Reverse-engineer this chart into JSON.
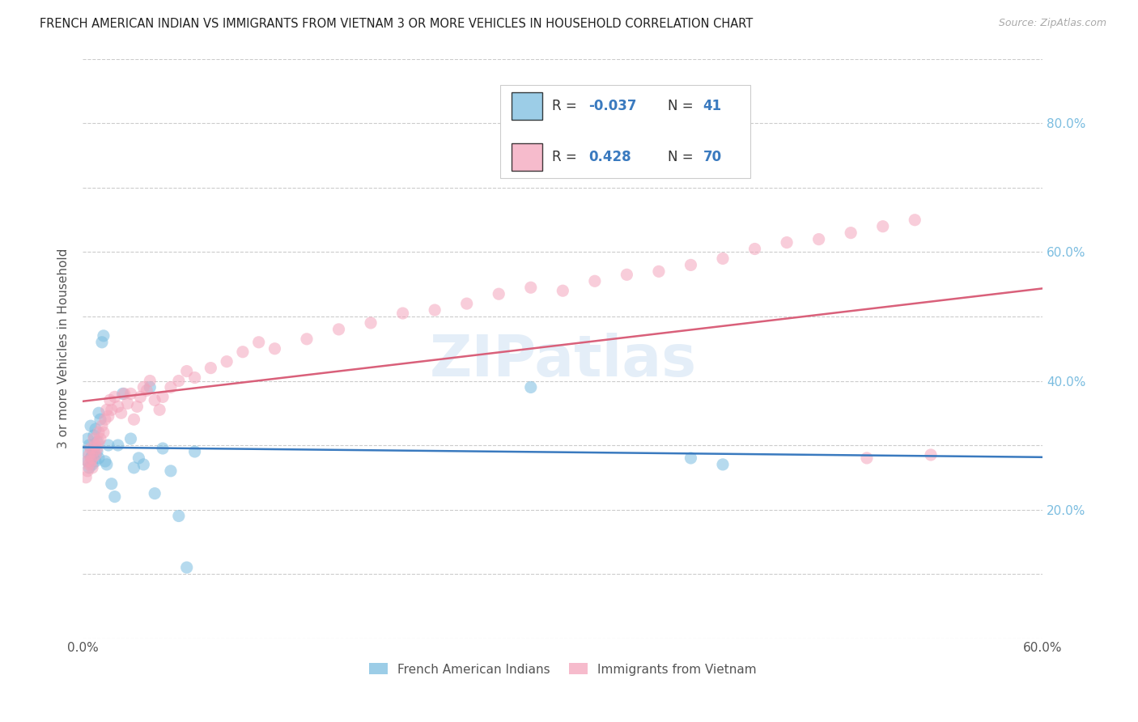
{
  "title": "FRENCH AMERICAN INDIAN VS IMMIGRANTS FROM VIETNAM 3 OR MORE VEHICLES IN HOUSEHOLD CORRELATION CHART",
  "source": "Source: ZipAtlas.com",
  "ylabel": "3 or more Vehicles in Household",
  "xlim": [
    0.0,
    0.6
  ],
  "ylim": [
    0.0,
    0.9
  ],
  "xtick_positions": [
    0.0,
    0.1,
    0.2,
    0.3,
    0.4,
    0.5,
    0.6
  ],
  "xticklabels": [
    "0.0%",
    "",
    "",
    "",
    "",
    "",
    "60.0%"
  ],
  "ytick_positions": [
    0.0,
    0.1,
    0.2,
    0.3,
    0.4,
    0.5,
    0.6,
    0.7,
    0.8,
    0.9
  ],
  "ytick_right": [
    0.2,
    0.4,
    0.6,
    0.8
  ],
  "yticklabels_right": [
    "20.0%",
    "40.0%",
    "60.0%",
    "80.0%"
  ],
  "legend_labels": [
    "French American Indians",
    "Immigrants from Vietnam"
  ],
  "R_blue": -0.037,
  "N_blue": 41,
  "R_pink": 0.428,
  "N_pink": 70,
  "blue_scatter_color": "#7bbde0",
  "pink_scatter_color": "#f4a5bc",
  "blue_line_color": "#3a7abf",
  "pink_line_color": "#d9607a",
  "watermark": "ZIPatlas",
  "blue_x": [
    0.002,
    0.003,
    0.003,
    0.004,
    0.004,
    0.005,
    0.005,
    0.006,
    0.006,
    0.007,
    0.007,
    0.008,
    0.008,
    0.009,
    0.009,
    0.01,
    0.01,
    0.011,
    0.012,
    0.013,
    0.014,
    0.015,
    0.016,
    0.018,
    0.02,
    0.022,
    0.025,
    0.03,
    0.032,
    0.035,
    0.038,
    0.042,
    0.045,
    0.05,
    0.055,
    0.06,
    0.065,
    0.07,
    0.28,
    0.38,
    0.4
  ],
  "blue_y": [
    0.29,
    0.275,
    0.31,
    0.265,
    0.3,
    0.28,
    0.33,
    0.285,
    0.27,
    0.315,
    0.295,
    0.275,
    0.325,
    0.305,
    0.29,
    0.35,
    0.28,
    0.34,
    0.46,
    0.47,
    0.275,
    0.27,
    0.3,
    0.24,
    0.22,
    0.3,
    0.38,
    0.31,
    0.265,
    0.28,
    0.27,
    0.39,
    0.225,
    0.295,
    0.26,
    0.19,
    0.11,
    0.29,
    0.39,
    0.28,
    0.27
  ],
  "pink_x": [
    0.002,
    0.003,
    0.003,
    0.004,
    0.004,
    0.005,
    0.005,
    0.006,
    0.006,
    0.007,
    0.007,
    0.008,
    0.008,
    0.009,
    0.01,
    0.01,
    0.011,
    0.012,
    0.013,
    0.014,
    0.015,
    0.016,
    0.017,
    0.018,
    0.02,
    0.022,
    0.024,
    0.026,
    0.028,
    0.03,
    0.032,
    0.034,
    0.036,
    0.038,
    0.04,
    0.042,
    0.045,
    0.048,
    0.05,
    0.055,
    0.06,
    0.065,
    0.07,
    0.08,
    0.09,
    0.1,
    0.11,
    0.12,
    0.14,
    0.16,
    0.18,
    0.2,
    0.22,
    0.24,
    0.26,
    0.28,
    0.3,
    0.32,
    0.34,
    0.36,
    0.38,
    0.4,
    0.42,
    0.44,
    0.46,
    0.48,
    0.5,
    0.52,
    0.49,
    0.53
  ],
  "pink_y": [
    0.25,
    0.26,
    0.275,
    0.27,
    0.285,
    0.275,
    0.295,
    0.28,
    0.265,
    0.29,
    0.31,
    0.3,
    0.285,
    0.295,
    0.305,
    0.32,
    0.31,
    0.33,
    0.32,
    0.34,
    0.355,
    0.345,
    0.37,
    0.355,
    0.375,
    0.36,
    0.35,
    0.38,
    0.365,
    0.38,
    0.34,
    0.36,
    0.375,
    0.39,
    0.385,
    0.4,
    0.37,
    0.355,
    0.375,
    0.39,
    0.4,
    0.415,
    0.405,
    0.42,
    0.43,
    0.445,
    0.46,
    0.45,
    0.465,
    0.48,
    0.49,
    0.505,
    0.51,
    0.52,
    0.535,
    0.545,
    0.54,
    0.555,
    0.565,
    0.57,
    0.58,
    0.59,
    0.605,
    0.615,
    0.62,
    0.63,
    0.64,
    0.65,
    0.28,
    0.285
  ]
}
